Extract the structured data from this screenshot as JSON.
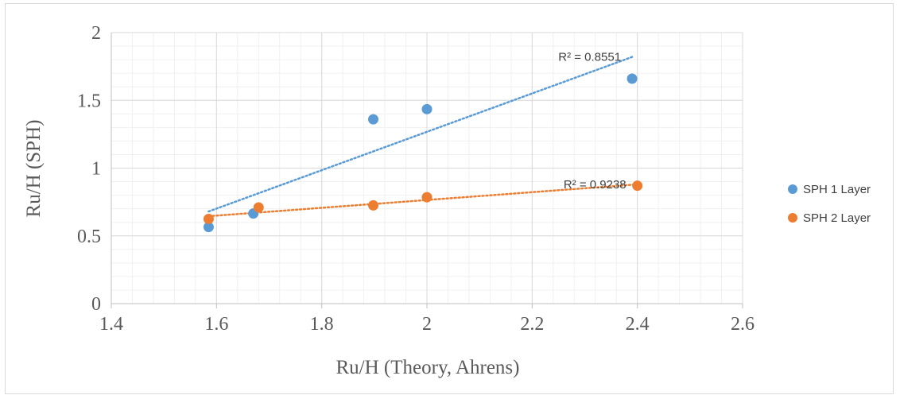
{
  "chart_data": {
    "type": "scatter",
    "xlabel": "Ru/H (Theory, Ahrens)",
    "ylabel": "Ru/H (SPH)",
    "xlim": [
      1.4,
      2.6
    ],
    "ylim": [
      0,
      2
    ],
    "x_ticks": [
      1.4,
      1.6,
      1.8,
      2,
      2.2,
      2.4,
      2.6
    ],
    "y_ticks": [
      0,
      0.5,
      1,
      1.5,
      2
    ],
    "x_tick_labels": [
      "1.4",
      "1.6",
      "1.8",
      "2",
      "2.2",
      "2.4",
      "2.6"
    ],
    "y_tick_labels": [
      "0",
      "0.5",
      "1",
      "1.5",
      "2"
    ],
    "grid": true,
    "minor_grid": true,
    "legend_position": "right",
    "series": [
      {
        "name": "SPH 1 Layer",
        "color": "#5B9BD5",
        "points": [
          {
            "x": 1.585,
            "y": 0.565
          },
          {
            "x": 1.67,
            "y": 0.665
          },
          {
            "x": 1.898,
            "y": 1.36
          },
          {
            "x": 2.0,
            "y": 1.435
          },
          {
            "x": 2.39,
            "y": 1.66
          }
        ],
        "trendline": {
          "x": [
            1.585,
            2.39
          ],
          "y": [
            0.68,
            1.82
          ],
          "label": "R² = 0.8551"
        }
      },
      {
        "name": "SPH 2 Layer",
        "color": "#ED7D31",
        "points": [
          {
            "x": 1.585,
            "y": 0.625
          },
          {
            "x": 1.68,
            "y": 0.71
          },
          {
            "x": 1.898,
            "y": 0.725
          },
          {
            "x": 2.0,
            "y": 0.785
          },
          {
            "x": 2.4,
            "y": 0.87
          }
        ],
        "trendline": {
          "x": [
            1.585,
            2.4
          ],
          "y": [
            0.645,
            0.88
          ],
          "label": "R² = 0.9238"
        }
      }
    ]
  }
}
